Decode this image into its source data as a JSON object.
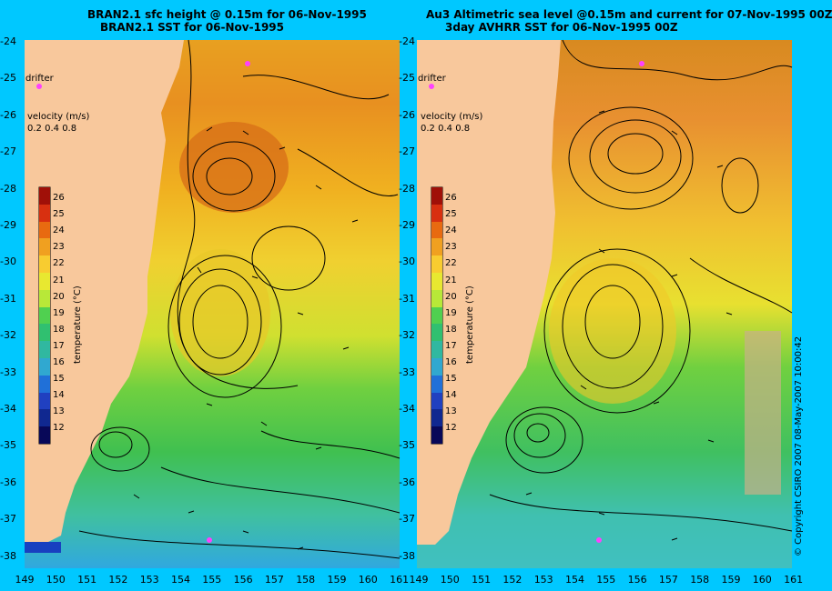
{
  "left_panel": {
    "title_line1": "BRAN2.1 sfc height @ 0.15m for 06-Nov-1995",
    "title_line2": "BRAN2.1 SST for 06-Nov-1995"
  },
  "right_panel": {
    "title_line1": "Au3 Altimetric sea level  @0.15m and current for 07-Nov-1995 00Z",
    "title_line2": "3day AVHRR SST for 06-Nov-1995 00Z"
  },
  "legend": {
    "drifter_label": "drifter",
    "velocity_label": "velocity (m/s)",
    "velocity_values": [
      "0.2",
      "0.4",
      "0.8"
    ],
    "temperature_title": "temperature (°C)",
    "temperature_ticks": [
      "26",
      "25",
      "24",
      "23",
      "22",
      "21",
      "20",
      "19",
      "18",
      "17",
      "16",
      "15",
      "14",
      "13",
      "12"
    ]
  },
  "axes": {
    "y_ticks": [
      "-24",
      "-25",
      "-26",
      "-27",
      "-28",
      "-29",
      "-30",
      "-31",
      "-32",
      "-33",
      "-34",
      "-35",
      "-36",
      "-37",
      "-38"
    ],
    "x_ticks_left": [
      "149",
      "150",
      "151",
      "152",
      "153",
      "154",
      "155",
      "156",
      "157",
      "158",
      "159",
      "160",
      "161"
    ],
    "x_ticks_right": [
      "149",
      "150",
      "151",
      "152",
      "153",
      "154",
      "155",
      "156",
      "157",
      "158",
      "159",
      "160",
      "161"
    ]
  },
  "copyright": "© Copyright CSIRO 2007  08-May-2007 10:00:42",
  "colors": {
    "background": "#00c8ff",
    "land": "#f8c89c",
    "colormap": [
      "#a01008",
      "#d83010",
      "#e86a10",
      "#f0a020",
      "#f8cc30",
      "#e8e830",
      "#b8e838",
      "#50d050",
      "#30c070",
      "#30b8a0",
      "#30a8d0",
      "#2070d8",
      "#2040c0",
      "#102890",
      "#080858"
    ]
  }
}
